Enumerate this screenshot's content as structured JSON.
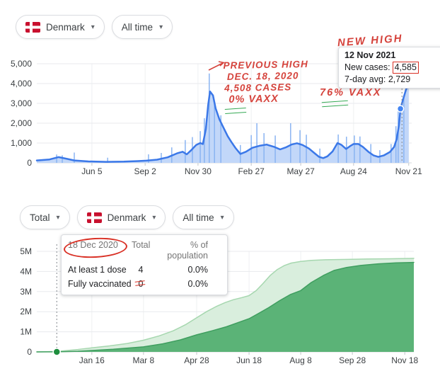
{
  "icons": {
    "chevron_down": "▾"
  },
  "colors": {
    "annotation_red": "#d5433c",
    "highlight_red": "#d93025",
    "underline_green": "#34a853",
    "case_line_blue": "#3b78e8",
    "case_fill_blue": "#c2d7f9",
    "dose1_fill_green": "#d9eedd",
    "fully_vax_fill_green": "#5bb377",
    "marker_blue": "#4285f4",
    "marker_green": "#1e8e3e"
  },
  "top_controls": {
    "country_label": "Denmark",
    "time_label": "All time"
  },
  "bottom_controls": {
    "metric_label": "Total",
    "country_label": "Denmark",
    "time_label": "All time"
  },
  "cases_tooltip": {
    "date": "12 Nov 2021",
    "new_cases_label": "New cases:",
    "new_cases_value": "4,585",
    "avg_label": "7-day avg:",
    "avg_value": "2,729"
  },
  "vax_tooltip": {
    "date": "18 Dec 2020",
    "col_total": "Total",
    "col_pct": "% of population",
    "rows": [
      {
        "label": "At least 1 dose",
        "total": "4",
        "pct": "0.0%"
      },
      {
        "label": "Fully vaccinated",
        "total": "0",
        "pct": "0.0%"
      }
    ]
  },
  "annotations": {
    "new_high": "NEW HIGH",
    "previous_high_lines": [
      "PREVIOUS HIGH",
      "DEC. 18, 2020",
      "4,508 CASES",
      "0% VAXX"
    ],
    "vax_note": "76% VAXX"
  },
  "chart_data": [
    {
      "type": "area",
      "name": "New cases — Denmark, all time",
      "ylim": [
        0,
        5000
      ],
      "grid": true,
      "legend": "none",
      "y_ticks": [
        {
          "label": "5,000",
          "value": 5000
        },
        {
          "label": "4,000",
          "value": 4000
        },
        {
          "label": "3,000",
          "value": 3000
        },
        {
          "label": "2,000",
          "value": 2000
        },
        {
          "label": "1,000",
          "value": 1000
        },
        {
          "label": "0",
          "value": 0
        }
      ],
      "x_ticks": [
        {
          "label": "Jun 5",
          "f": 0.147
        },
        {
          "label": "Sep 2",
          "f": 0.289
        },
        {
          "label": "Nov 30",
          "f": 0.43
        },
        {
          "label": "Feb 27",
          "f": 0.572
        },
        {
          "label": "May 27",
          "f": 0.704
        },
        {
          "label": "Aug 24",
          "f": 0.845
        },
        {
          "label": "Nov 21",
          "f": 0.992
        }
      ],
      "series": [
        {
          "name": "New cases (7-day average)",
          "stroke": "#3b78e8",
          "fill": "#c2d7f9",
          "stroke_width": 2.5,
          "points": [
            [
              0.0,
              120
            ],
            [
              0.034,
              170
            ],
            [
              0.058,
              290
            ],
            [
              0.081,
              200
            ],
            [
              0.1,
              120
            ],
            [
              0.138,
              70
            ],
            [
              0.185,
              50
            ],
            [
              0.232,
              60
            ],
            [
              0.27,
              90
            ],
            [
              0.292,
              110
            ],
            [
              0.321,
              160
            ],
            [
              0.349,
              280
            ],
            [
              0.374,
              480
            ],
            [
              0.389,
              560
            ],
            [
              0.4,
              430
            ],
            [
              0.411,
              620
            ],
            [
              0.425,
              900
            ],
            [
              0.436,
              1000
            ],
            [
              0.443,
              950
            ],
            [
              0.451,
              1700
            ],
            [
              0.457,
              2900
            ],
            [
              0.462,
              3600
            ],
            [
              0.47,
              3400
            ],
            [
              0.477,
              2750
            ],
            [
              0.487,
              2200
            ],
            [
              0.496,
              1850
            ],
            [
              0.509,
              1350
            ],
            [
              0.519,
              1050
            ],
            [
              0.53,
              750
            ],
            [
              0.543,
              450
            ],
            [
              0.558,
              560
            ],
            [
              0.575,
              760
            ],
            [
              0.594,
              860
            ],
            [
              0.613,
              920
            ],
            [
              0.634,
              800
            ],
            [
              0.649,
              680
            ],
            [
              0.664,
              780
            ],
            [
              0.679,
              920
            ],
            [
              0.694,
              990
            ],
            [
              0.709,
              900
            ],
            [
              0.726,
              720
            ],
            [
              0.74,
              500
            ],
            [
              0.753,
              300
            ],
            [
              0.764,
              240
            ],
            [
              0.775,
              330
            ],
            [
              0.789,
              580
            ],
            [
              0.802,
              1000
            ],
            [
              0.813,
              900
            ],
            [
              0.825,
              700
            ],
            [
              0.836,
              850
            ],
            [
              0.845,
              950
            ],
            [
              0.858,
              950
            ],
            [
              0.87,
              800
            ],
            [
              0.885,
              550
            ],
            [
              0.898,
              380
            ],
            [
              0.911,
              300
            ],
            [
              0.926,
              380
            ],
            [
              0.942,
              550
            ],
            [
              0.953,
              800
            ],
            [
              0.96,
              1200
            ],
            [
              0.966,
              1900
            ],
            [
              0.97,
              2729
            ],
            [
              0.977,
              3200
            ],
            [
              0.985,
              3700
            ],
            [
              0.992,
              3990
            ]
          ]
        }
      ],
      "spikes": {
        "color": "#8ab4f2",
        "values": [
          [
            0.053,
            420
          ],
          [
            0.068,
            380
          ],
          [
            0.1,
            520
          ],
          [
            0.189,
            260
          ],
          [
            0.298,
            430
          ],
          [
            0.332,
            500
          ],
          [
            0.36,
            780
          ],
          [
            0.396,
            1150
          ],
          [
            0.415,
            1300
          ],
          [
            0.436,
            1600
          ],
          [
            0.447,
            2250
          ],
          [
            0.46,
            4508
          ],
          [
            0.474,
            2950
          ],
          [
            0.491,
            2400
          ],
          [
            0.543,
            900
          ],
          [
            0.572,
            1400
          ],
          [
            0.587,
            2000
          ],
          [
            0.606,
            1500
          ],
          [
            0.636,
            1380
          ],
          [
            0.677,
            2000
          ],
          [
            0.702,
            1650
          ],
          [
            0.719,
            1420
          ],
          [
            0.755,
            720
          ],
          [
            0.804,
            1430
          ],
          [
            0.826,
            1320
          ],
          [
            0.847,
            1380
          ],
          [
            0.862,
            1330
          ],
          [
            0.891,
            950
          ],
          [
            0.915,
            640
          ],
          [
            0.945,
            950
          ],
          [
            0.958,
            1850
          ],
          [
            0.964,
            2650
          ],
          [
            0.979,
            3300
          ]
        ]
      },
      "ref_line": {
        "f": 0.974
      },
      "marker": {
        "f": 0.97,
        "value": 2729,
        "color": "#4285f4",
        "r": 4.5
      }
    },
    {
      "type": "area",
      "name": "Vaccinations — Denmark, total, all time",
      "ylim": [
        0,
        5
      ],
      "grid": true,
      "legend": "none",
      "y_ticks": [
        {
          "label": "5M",
          "value": 5
        },
        {
          "label": "4M",
          "value": 4
        },
        {
          "label": "3M",
          "value": 3
        },
        {
          "label": "2M",
          "value": 2
        },
        {
          "label": "1M",
          "value": 1
        },
        {
          "label": "0",
          "value": 0
        }
      ],
      "x_ticks": [
        {
          "label": "Jan 16",
          "f": 0.146
        },
        {
          "label": "Mar 8",
          "f": 0.283
        },
        {
          "label": "Apr 28",
          "f": 0.424
        },
        {
          "label": "Jun 18",
          "f": 0.563
        },
        {
          "label": "Aug 8",
          "f": 0.7
        },
        {
          "label": "Sep 28",
          "f": 0.837
        },
        {
          "label": "Nov 18",
          "f": 0.976
        }
      ],
      "series": [
        {
          "name": "At least 1 dose",
          "stroke": "#a6d7af",
          "fill": "#d9eedd",
          "stroke_width": 1.5,
          "points": [
            [
              0.0,
              0
            ],
            [
              0.053,
              0.02
            ],
            [
              0.109,
              0.12
            ],
            [
              0.146,
              0.2
            ],
            [
              0.193,
              0.3
            ],
            [
              0.24,
              0.42
            ],
            [
              0.283,
              0.58
            ],
            [
              0.325,
              0.8
            ],
            [
              0.362,
              1.05
            ],
            [
              0.394,
              1.35
            ],
            [
              0.424,
              1.7
            ],
            [
              0.45,
              2.0
            ],
            [
              0.475,
              2.25
            ],
            [
              0.499,
              2.45
            ],
            [
              0.522,
              2.6
            ],
            [
              0.544,
              2.7
            ],
            [
              0.563,
              2.8
            ],
            [
              0.582,
              3.05
            ],
            [
              0.6,
              3.4
            ],
            [
              0.619,
              3.8
            ],
            [
              0.638,
              4.1
            ],
            [
              0.657,
              4.3
            ],
            [
              0.675,
              4.42
            ],
            [
              0.7,
              4.5
            ],
            [
              0.728,
              4.55
            ],
            [
              0.765,
              4.58
            ],
            [
              0.822,
              4.6
            ],
            [
              0.878,
              4.62
            ],
            [
              0.934,
              4.63
            ],
            [
              1.0,
              4.65
            ]
          ]
        },
        {
          "name": "Fully vaccinated",
          "stroke": "#3f9e5f",
          "fill": "#5bb377",
          "stroke_width": 1.5,
          "points": [
            [
              0.0,
              0
            ],
            [
              0.053,
              0.005
            ],
            [
              0.109,
              0.03
            ],
            [
              0.146,
              0.07
            ],
            [
              0.203,
              0.13
            ],
            [
              0.283,
              0.25
            ],
            [
              0.334,
              0.4
            ],
            [
              0.381,
              0.6
            ],
            [
              0.424,
              0.85
            ],
            [
              0.465,
              1.05
            ],
            [
              0.503,
              1.25
            ],
            [
              0.54,
              1.5
            ],
            [
              0.563,
              1.65
            ],
            [
              0.587,
              1.9
            ],
            [
              0.615,
              2.2
            ],
            [
              0.644,
              2.55
            ],
            [
              0.672,
              2.85
            ],
            [
              0.7,
              3.05
            ],
            [
              0.728,
              3.45
            ],
            [
              0.76,
              3.8
            ],
            [
              0.788,
              4.05
            ],
            [
              0.822,
              4.2
            ],
            [
              0.859,
              4.3
            ],
            [
              0.906,
              4.38
            ],
            [
              0.953,
              4.43
            ],
            [
              1.0,
              4.45
            ]
          ]
        }
      ],
      "ref_line": {
        "f": 0.053
      },
      "marker": {
        "f": 0.053,
        "value": 0,
        "color": "#1e8e3e",
        "r": 5
      }
    }
  ]
}
